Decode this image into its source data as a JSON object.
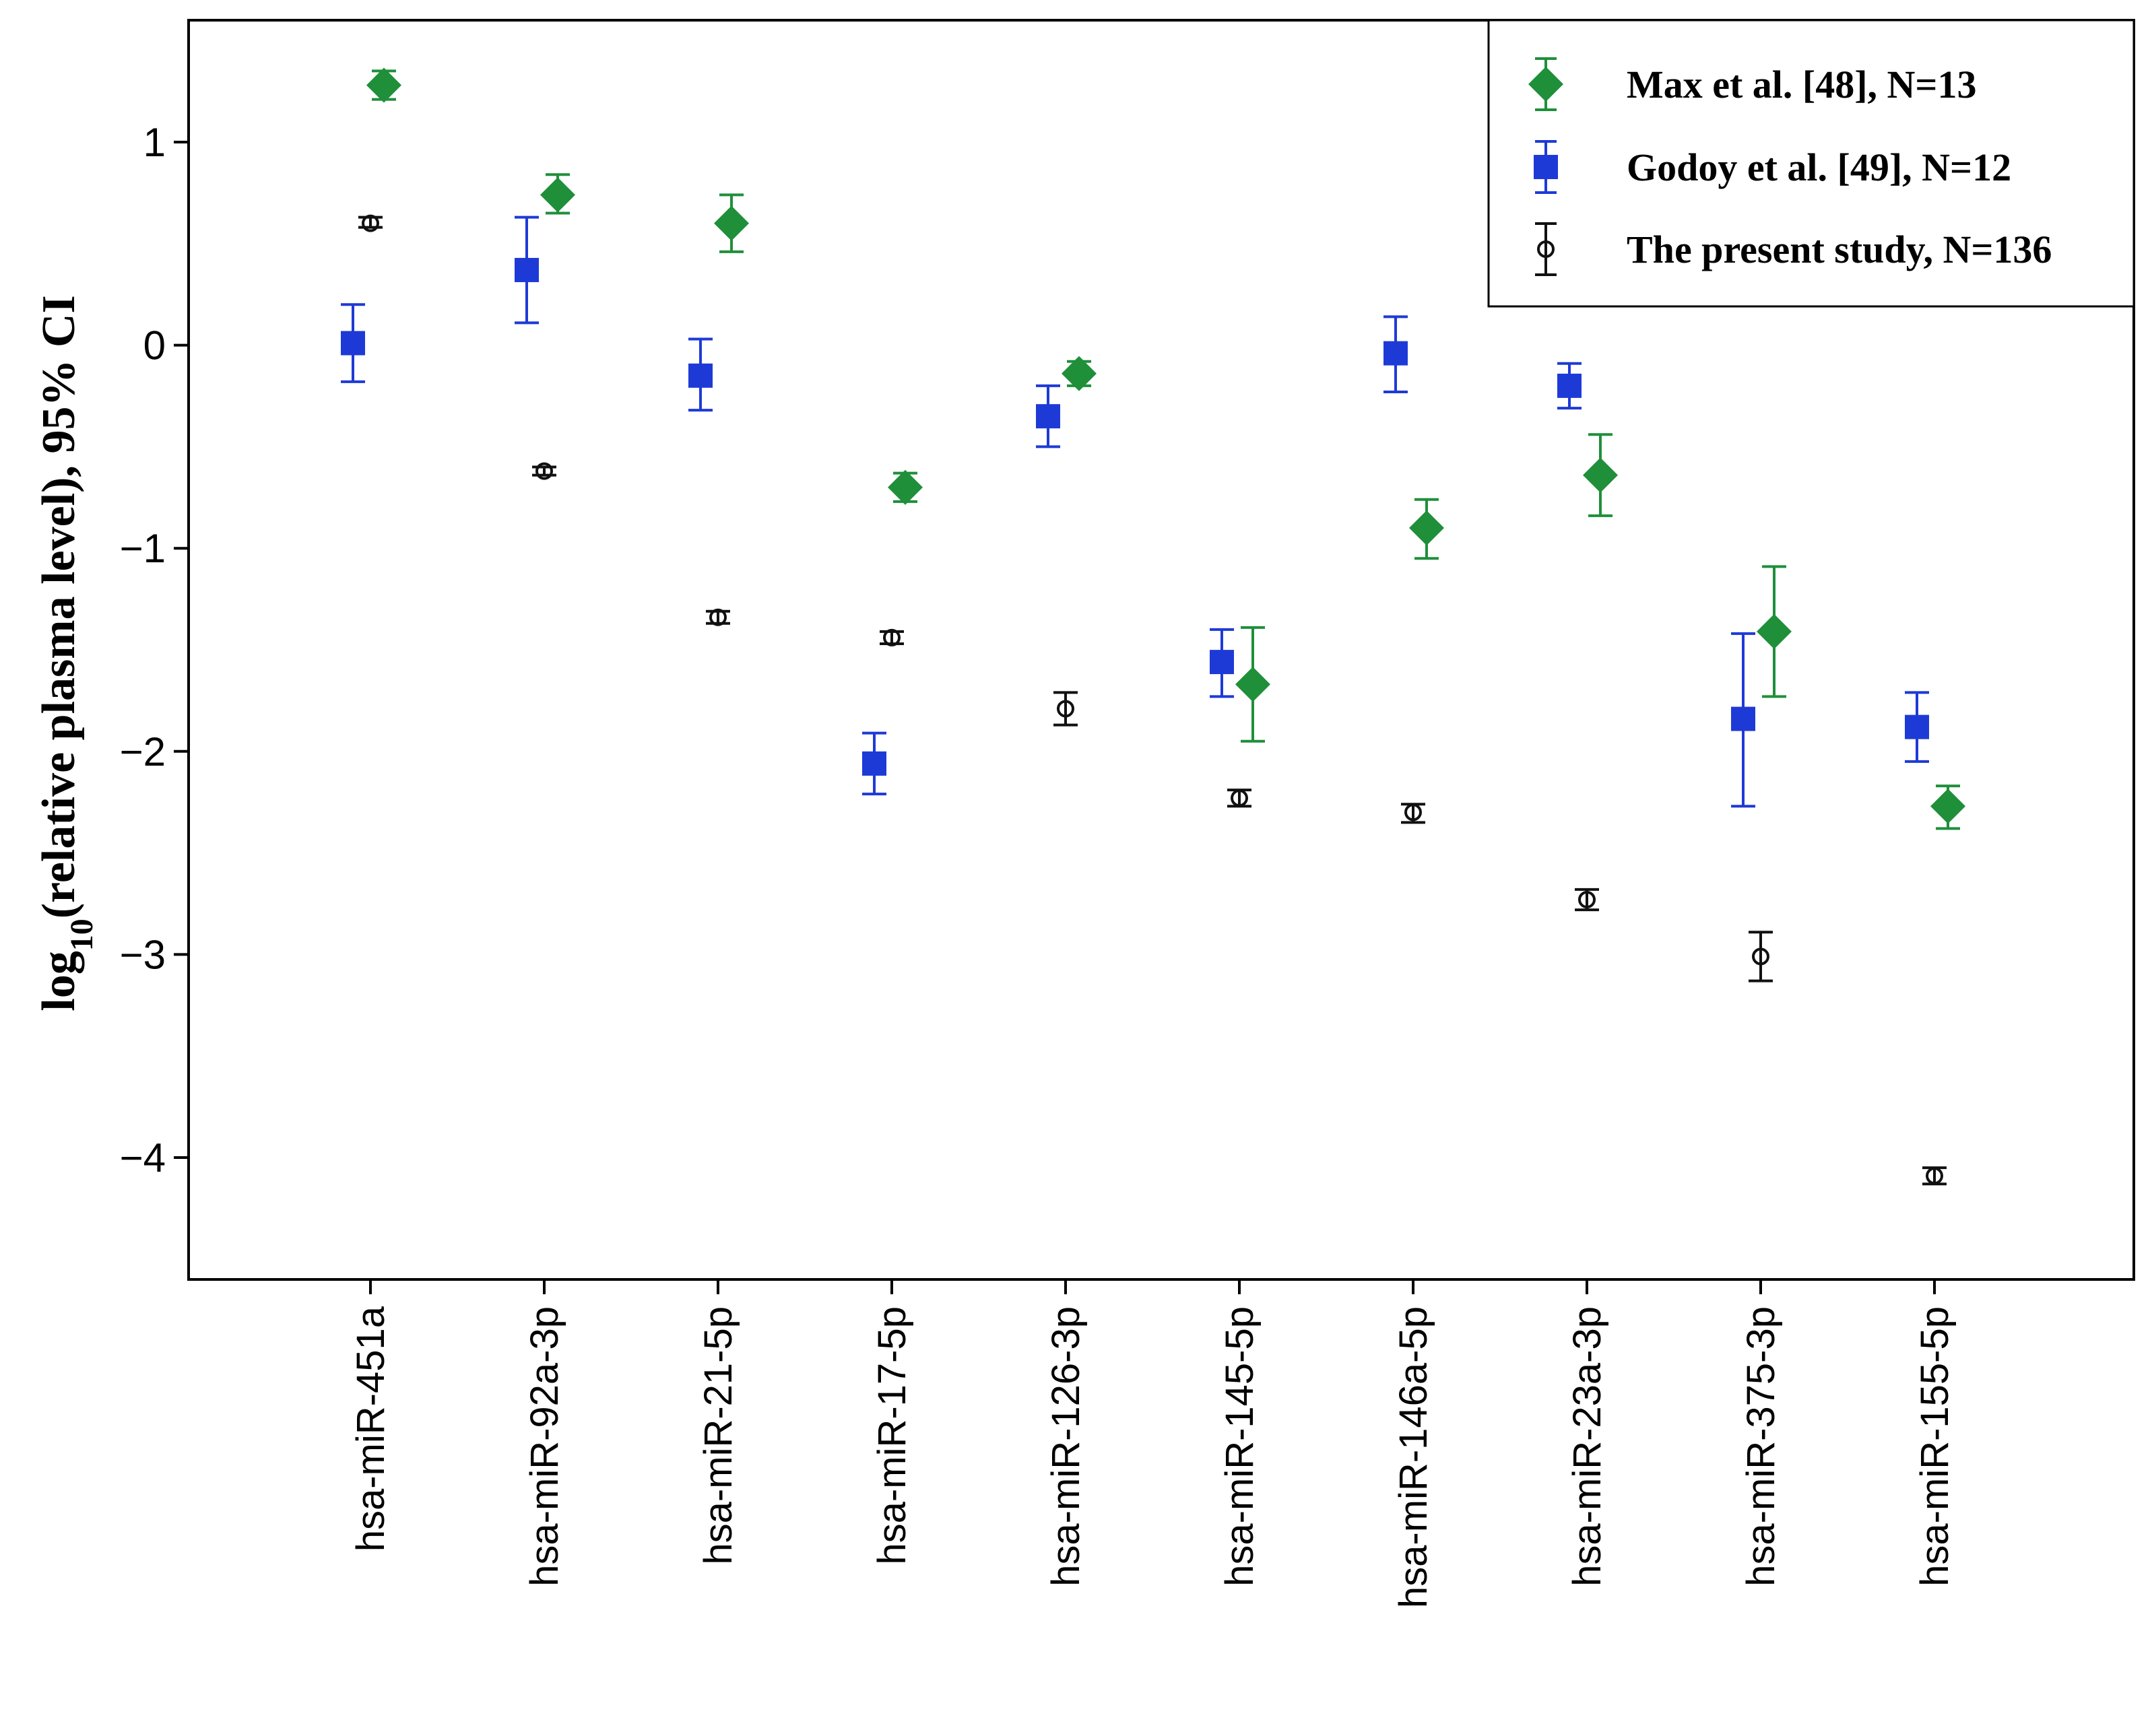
{
  "chart_data": {
    "type": "scatter",
    "subtype": "error-bar dot plot",
    "title": "",
    "xlabel": "",
    "ylabel": {
      "prefix": "log",
      "subscript": "10",
      "suffix": "(relative plasma level), 95% CI"
    },
    "ylim": [
      -4.6,
      1.6
    ],
    "yticks": [
      1,
      0,
      -1,
      -2,
      -3,
      -4
    ],
    "ytick_labels": [
      "1",
      "0",
      "−1",
      "−2",
      "−3",
      "−4"
    ],
    "grid": false,
    "legend_position": "top-right",
    "categories": [
      "hsa-miR-451a",
      "hsa-miR-92a-3p",
      "hsa-miR-21-5p",
      "hsa-miR-17-5p",
      "hsa-miR-126-3p",
      "hsa-miR-145-5p",
      "hsa-miR-146a-5p",
      "hsa-miR-23a-3p",
      "hsa-miR-375-3p",
      "hsa-miR-155-5p"
    ],
    "series": [
      {
        "name": "Max et al. [48], N=13",
        "color": "#1f8f3a",
        "marker": "diamond",
        "values": [
          1.28,
          0.74,
          0.6,
          -0.7,
          -0.14,
          -1.67,
          -0.9,
          -0.64,
          -1.41,
          -2.27
        ],
        "ci_low": [
          1.21,
          0.65,
          0.46,
          -0.77,
          -0.2,
          -1.95,
          -1.05,
          -0.84,
          -1.73,
          -2.38
        ],
        "ci_high": [
          1.35,
          0.84,
          0.74,
          -0.63,
          -0.08,
          -1.39,
          -0.76,
          -0.44,
          -1.09,
          -2.17
        ]
      },
      {
        "name": "Godoy et al. [49], N=12",
        "color": "#1e3ad6",
        "marker": "square",
        "values": [
          0.01,
          0.37,
          -0.15,
          -2.06,
          -0.35,
          -1.56,
          -0.04,
          -0.2,
          -1.84,
          -1.88
        ],
        "ci_low": [
          -0.18,
          0.11,
          -0.32,
          -2.21,
          -0.5,
          -1.73,
          -0.23,
          -0.31,
          -2.27,
          -2.05
        ],
        "ci_high": [
          0.2,
          0.63,
          0.03,
          -1.91,
          -0.2,
          -1.4,
          0.14,
          -0.09,
          -1.42,
          -1.71
        ]
      },
      {
        "name": "The present study, N=136",
        "color": "#111111",
        "marker": "circle",
        "values": [
          0.6,
          -0.62,
          -1.34,
          -1.44,
          -1.79,
          -2.23,
          -2.3,
          -2.73,
          -3.01,
          -4.09
        ],
        "ci_low": [
          0.58,
          -0.64,
          -1.37,
          -1.47,
          -1.87,
          -2.27,
          -2.35,
          -2.78,
          -3.13,
          -4.13
        ],
        "ci_high": [
          0.63,
          -0.6,
          -1.31,
          -1.41,
          -1.71,
          -2.19,
          -2.26,
          -2.68,
          -2.89,
          -4.05
        ]
      }
    ]
  }
}
